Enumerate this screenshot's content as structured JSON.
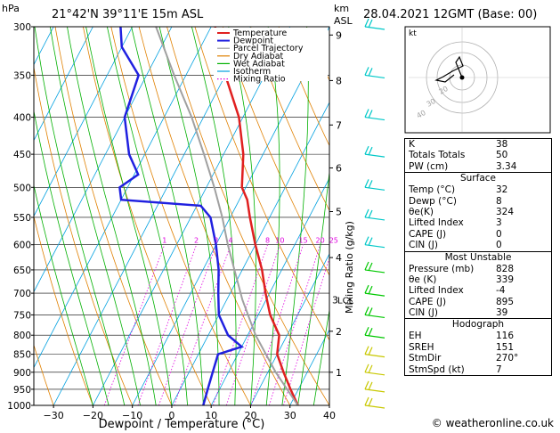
{
  "header": {
    "hpa_label": "hPa",
    "location": "21°42'N  39°11'E  15m ASL",
    "km_label": "km",
    "asl_label": "ASL",
    "datetime": "28.04.2021  12GMT  (Base: 00)"
  },
  "footer": {
    "copyright": "© weatheronline.co.uk"
  },
  "colors": {
    "temperature": "#e02020",
    "dewpoint": "#2020e0",
    "parcel": "#a0a0a0",
    "dry_adiabat": "#e08000",
    "wet_adiabat": "#00b000",
    "isotherm": "#00a0e0",
    "mixing_ratio": "#e000e0"
  },
  "chart_data": {
    "type": "line",
    "xlabel": "Dewpoint / Temperature (°C)",
    "ylabel": "hPa",
    "right_label": "Mixing Ratio (g/kg)",
    "xlim": [
      -35,
      40
    ],
    "ylim": [
      1000,
      300
    ],
    "x_ticks": [
      "−30",
      "−20",
      "−10",
      "0",
      "10",
      "20",
      "30",
      "40"
    ],
    "pressure_levels": [
      300,
      350,
      400,
      450,
      500,
      550,
      600,
      650,
      700,
      750,
      800,
      850,
      900,
      950,
      1000
    ],
    "km_ticks": [
      {
        "p": 308,
        "label": "9"
      },
      {
        "p": 356,
        "label": "8"
      },
      {
        "p": 410,
        "label": "7"
      },
      {
        "p": 470,
        "label": "6"
      },
      {
        "p": 540,
        "label": "5"
      },
      {
        "p": 625,
        "label": "4"
      },
      {
        "p": 790,
        "label": "2"
      },
      {
        "p": 900,
        "label": "1"
      }
    ],
    "lcl": {
      "p": 715,
      "label": "LCL",
      "km": "3"
    },
    "mixing_ratio_labels": [
      "1",
      "2",
      "3",
      "4",
      "8",
      "10",
      "15",
      "20",
      "25"
    ],
    "legend": [
      "Temperature",
      "Dewpoint",
      "Parcel Trajectory",
      "Dry Adiabat",
      "Wet Adiabat",
      "Isotherm",
      "Mixing Ratio"
    ],
    "legend_position": "top-right",
    "series": [
      {
        "name": "Temperature",
        "points": [
          [
            1000,
            32
          ],
          [
            950,
            28
          ],
          [
            900,
            24
          ],
          [
            850,
            20
          ],
          [
            800,
            18
          ],
          [
            750,
            13
          ],
          [
            700,
            9
          ],
          [
            650,
            5
          ],
          [
            600,
            0
          ],
          [
            550,
            -5
          ],
          [
            520,
            -8
          ],
          [
            500,
            -11
          ],
          [
            450,
            -15
          ],
          [
            400,
            -21
          ],
          [
            350,
            -30
          ],
          [
            300,
            -39
          ]
        ]
      },
      {
        "name": "Dewpoint",
        "points": [
          [
            1000,
            8
          ],
          [
            950,
            7
          ],
          [
            900,
            6
          ],
          [
            850,
            5
          ],
          [
            830,
            10
          ],
          [
            800,
            5
          ],
          [
            750,
            0
          ],
          [
            700,
            -3
          ],
          [
            650,
            -6
          ],
          [
            600,
            -10
          ],
          [
            550,
            -15
          ],
          [
            530,
            -19
          ],
          [
            520,
            -40
          ],
          [
            500,
            -42
          ],
          [
            480,
            -39
          ],
          [
            450,
            -44
          ],
          [
            400,
            -50
          ],
          [
            350,
            -52
          ],
          [
            320,
            -60
          ],
          [
            300,
            -63
          ]
        ]
      },
      {
        "name": "Parcel Trajectory",
        "points": [
          [
            1000,
            32
          ],
          [
            900,
            22
          ],
          [
            800,
            12
          ],
          [
            715,
            4
          ],
          [
            650,
            -2
          ],
          [
            600,
            -7
          ],
          [
            550,
            -12
          ],
          [
            500,
            -18
          ],
          [
            450,
            -25
          ],
          [
            400,
            -33
          ],
          [
            350,
            -43
          ],
          [
            300,
            -54
          ]
        ]
      }
    ]
  },
  "hodograph": {
    "unit_label": "kt",
    "ring_labels": [
      "40",
      "30",
      "20"
    ]
  },
  "indices": {
    "k_label": "K",
    "k": "38",
    "tt_label": "Totals Totals",
    "tt": "50",
    "pw_label": "PW (cm)",
    "pw": "3.34",
    "surface": {
      "title": "Surface",
      "temp_label": "Temp (°C)",
      "temp": "32",
      "dewp_label": "Dewp (°C)",
      "dewp": "8",
      "theta_label": "θe(K)",
      "theta": "324",
      "li_label": "Lifted Index",
      "li": "3",
      "cape_label": "CAPE (J)",
      "cape": "0",
      "cin_label": "CIN (J)",
      "cin": "0"
    },
    "most_unstable": {
      "title": "Most Unstable",
      "pres_label": "Pressure (mb)",
      "pres": "828",
      "theta_label": "θe (K)",
      "theta": "339",
      "li_label": "Lifted Index",
      "li": "-4",
      "cape_label": "CAPE (J)",
      "cape": "895",
      "cin_label": "CIN (J)",
      "cin": "39"
    },
    "hodograph": {
      "title": "Hodograph",
      "eh_label": "EH",
      "eh": "116",
      "sreh_label": "SREH",
      "sreh": "151",
      "stmdir_label": "StmDir",
      "stmdir": "270°",
      "stmspd_label": "StmSpd (kt)",
      "stmspd": "7"
    }
  }
}
